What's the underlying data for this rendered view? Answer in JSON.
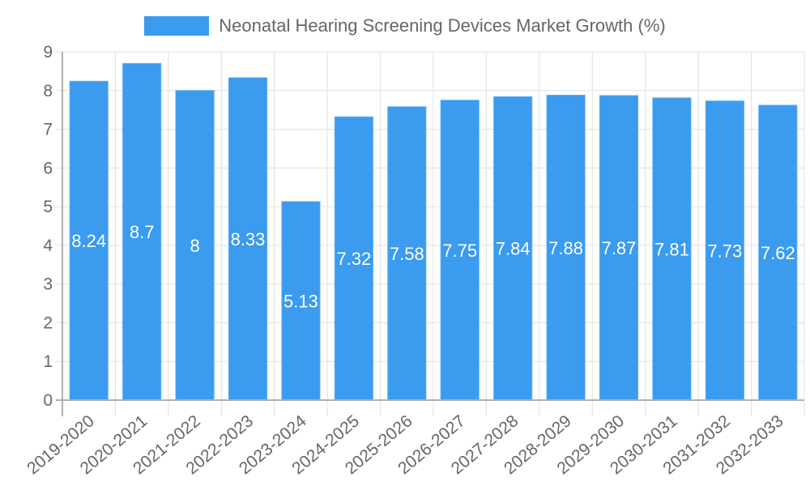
{
  "legend": {
    "label": "Neonatal Hearing Screening Devices Market Growth (%)",
    "color": "#3a9bef"
  },
  "colors": {
    "bar": "#3a9bef",
    "grid": "#e0e0e0",
    "axis": "#b0b0b0",
    "text": "#666666"
  },
  "chart_data": {
    "type": "bar",
    "title": "",
    "xlabel": "",
    "ylabel": "",
    "ylim": [
      0,
      9
    ],
    "yticks": [
      0,
      1,
      2,
      3,
      4,
      5,
      6,
      7,
      8,
      9
    ],
    "grid": true,
    "legend_position": "top",
    "categories": [
      "2019-2020",
      "2020-2021",
      "2021-2022",
      "2022-2023",
      "2023-2024",
      "2024-2025",
      "2025-2026",
      "2026-2027",
      "2027-2028",
      "2028-2029",
      "2029-2030",
      "2030-2031",
      "2031-2032",
      "2032-2033"
    ],
    "series": [
      {
        "name": "Neonatal Hearing Screening Devices Market Growth (%)",
        "values": [
          8.24,
          8.7,
          8,
          8.33,
          5.13,
          7.32,
          7.58,
          7.75,
          7.84,
          7.88,
          7.87,
          7.81,
          7.73,
          7.62
        ]
      }
    ],
    "data_labels": [
      "8.24",
      "8.7",
      "8",
      "8.33",
      "5.13",
      "7.32",
      "7.58",
      "7.75",
      "7.84",
      "7.88",
      "7.87",
      "7.81",
      "7.73",
      "7.62"
    ]
  }
}
